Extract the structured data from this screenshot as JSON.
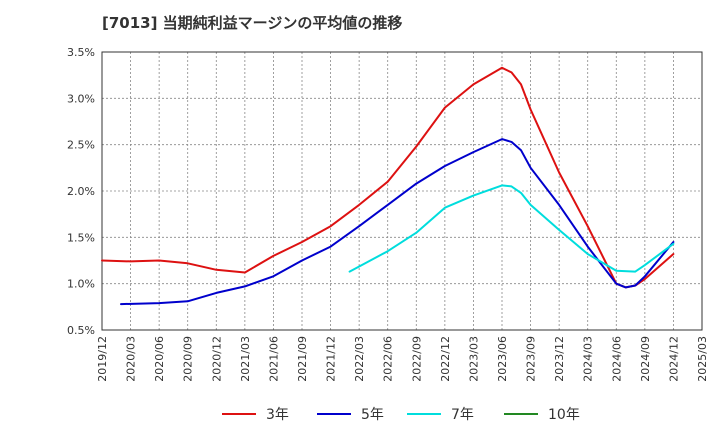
{
  "chart_data": {
    "type": "line",
    "title": "[7013]  当期純利益マージンの平均値の推移",
    "xlabel": "",
    "ylabel": "",
    "ylim": [
      0.5,
      3.5
    ],
    "y_ticks": [
      0.5,
      1.0,
      1.5,
      2.0,
      2.5,
      3.0,
      3.5
    ],
    "y_tick_labels": [
      "0.5%",
      "1.0%",
      "1.5%",
      "2.0%",
      "2.5%",
      "3.0%",
      "3.5%"
    ],
    "x_tick_labels": [
      "2019/12",
      "2020/03",
      "2020/06",
      "2020/09",
      "2020/12",
      "2021/03",
      "2021/06",
      "2021/09",
      "2021/12",
      "2022/03",
      "2022/06",
      "2022/09",
      "2022/12",
      "2023/03",
      "2023/06",
      "2023/09",
      "2023/12",
      "2024/03",
      "2024/06",
      "2024/09",
      "2024/12",
      "2025/03"
    ],
    "grid": true,
    "legend_position": "bottom",
    "series": [
      {
        "name": "3年",
        "color": "#dd1111",
        "points": [
          [
            "2019/12",
            1.25
          ],
          [
            "2020/03",
            1.24
          ],
          [
            "2020/06",
            1.25
          ],
          [
            "2020/09",
            1.22
          ],
          [
            "2020/12",
            1.15
          ],
          [
            "2021/03",
            1.12
          ],
          [
            "2021/06",
            1.3
          ],
          [
            "2021/09",
            1.45
          ],
          [
            "2021/12",
            1.62
          ],
          [
            "2022/03",
            1.85
          ],
          [
            "2022/06",
            2.1
          ],
          [
            "2022/09",
            2.48
          ],
          [
            "2022/12",
            2.9
          ],
          [
            "2023/03",
            3.15
          ],
          [
            "2023/06",
            3.33
          ],
          [
            "2023/07",
            3.28
          ],
          [
            "2023/08",
            3.15
          ],
          [
            "2023/09",
            2.88
          ],
          [
            "2023/12",
            2.2
          ],
          [
            "2024/03",
            1.62
          ],
          [
            "2024/06",
            1.0
          ],
          [
            "2024/07",
            0.96
          ],
          [
            "2024/08",
            0.98
          ],
          [
            "2024/09",
            1.05
          ],
          [
            "2024/12",
            1.32
          ]
        ]
      },
      {
        "name": "5年",
        "color": "#0000cc",
        "points": [
          [
            "2020/02",
            0.78
          ],
          [
            "2020/06",
            0.79
          ],
          [
            "2020/09",
            0.81
          ],
          [
            "2020/12",
            0.9
          ],
          [
            "2021/03",
            0.97
          ],
          [
            "2021/06",
            1.08
          ],
          [
            "2021/09",
            1.25
          ],
          [
            "2021/12",
            1.4
          ],
          [
            "2022/03",
            1.62
          ],
          [
            "2022/06",
            1.85
          ],
          [
            "2022/09",
            2.08
          ],
          [
            "2022/12",
            2.27
          ],
          [
            "2023/03",
            2.42
          ],
          [
            "2023/06",
            2.56
          ],
          [
            "2023/07",
            2.53
          ],
          [
            "2023/08",
            2.44
          ],
          [
            "2023/09",
            2.25
          ],
          [
            "2023/12",
            1.85
          ],
          [
            "2024/03",
            1.4
          ],
          [
            "2024/06",
            1.0
          ],
          [
            "2024/07",
            0.96
          ],
          [
            "2024/08",
            0.98
          ],
          [
            "2024/09",
            1.08
          ],
          [
            "2024/12",
            1.45
          ]
        ]
      },
      {
        "name": "7年",
        "color": "#00dddd",
        "points": [
          [
            "2022/02",
            1.13
          ],
          [
            "2022/06",
            1.35
          ],
          [
            "2022/09",
            1.55
          ],
          [
            "2022/12",
            1.82
          ],
          [
            "2023/03",
            1.95
          ],
          [
            "2023/06",
            2.06
          ],
          [
            "2023/07",
            2.05
          ],
          [
            "2023/08",
            1.98
          ],
          [
            "2023/09",
            1.85
          ],
          [
            "2023/12",
            1.58
          ],
          [
            "2024/03",
            1.32
          ],
          [
            "2024/06",
            1.14
          ],
          [
            "2024/08",
            1.13
          ],
          [
            "2024/09",
            1.2
          ],
          [
            "2024/12",
            1.43
          ]
        ]
      },
      {
        "name": "10年",
        "color": "#228822",
        "points": []
      }
    ]
  }
}
